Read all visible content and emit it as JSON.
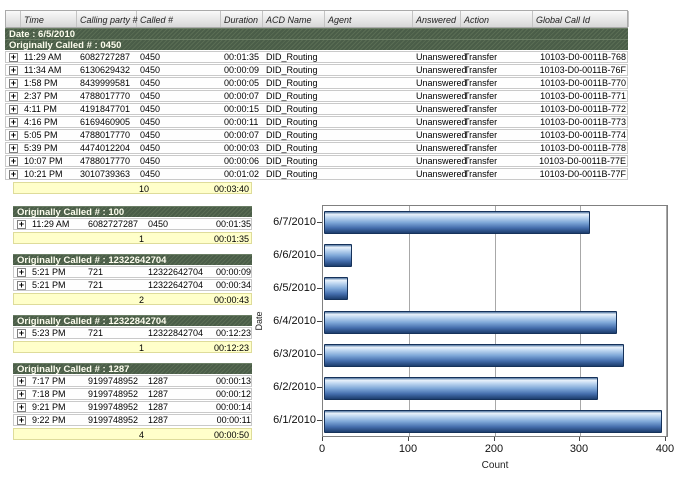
{
  "icons": {
    "expand": "+"
  },
  "colors": {
    "group_band_green": "#4d614c",
    "summary_yellow": "#ffffca",
    "bar_blue": "#5b8cc8",
    "header_gray": "#e3e3e3",
    "table_border": "#c9c9c9"
  },
  "table": {
    "headers": [
      "",
      "Time",
      "Calling party #",
      "Called #",
      "Duration",
      "ACD Name",
      "Agent",
      "Answered",
      "Action",
      "Global Call Id"
    ],
    "date_label": "Date : 6/5/2010",
    "groups": [
      {
        "label": "Originally Called # : 0450",
        "wide": true,
        "rows": [
          {
            "time": "11:29 AM",
            "calling": "6082727287",
            "called": "0450",
            "duration": "00:01:35",
            "acd": "DID_Routing",
            "agent": "",
            "answered": "Unanswered",
            "action": "Transfer",
            "global_id": "10103-D0-0011B-768"
          },
          {
            "time": "11:34 AM",
            "calling": "6130629432",
            "called": "0450",
            "duration": "00:00:09",
            "acd": "DID_Routing",
            "agent": "",
            "answered": "Unanswered",
            "action": "Transfer",
            "global_id": "10103-D0-0011B-76F"
          },
          {
            "time": "1:58 PM",
            "calling": "8439999581",
            "called": "0450",
            "duration": "00:00:05",
            "acd": "DID_Routing",
            "agent": "",
            "answered": "Unanswered",
            "action": "Transfer",
            "global_id": "10103-D0-0011B-770"
          },
          {
            "time": "2:37 PM",
            "calling": "4788017770",
            "called": "0450",
            "duration": "00:00:07",
            "acd": "DID_Routing",
            "agent": "",
            "answered": "Unanswered",
            "action": "Transfer",
            "global_id": "10103-D0-0011B-771"
          },
          {
            "time": "4:11 PM",
            "calling": "4191847701",
            "called": "0450",
            "duration": "00:00:15",
            "acd": "DID_Routing",
            "agent": "",
            "answered": "Unanswered",
            "action": "Transfer",
            "global_id": "10103-D0-0011B-772"
          },
          {
            "time": "4:16 PM",
            "calling": "6169460905",
            "called": "0450",
            "duration": "00:00:11",
            "acd": "DID_Routing",
            "agent": "",
            "answered": "Unanswered",
            "action": "Transfer",
            "global_id": "10103-D0-0011B-773"
          },
          {
            "time": "5:05 PM",
            "calling": "4788017770",
            "called": "0450",
            "duration": "00:00:07",
            "acd": "DID_Routing",
            "agent": "",
            "answered": "Unanswered",
            "action": "Transfer",
            "global_id": "10103-D0-0011B-774"
          },
          {
            "time": "5:39 PM",
            "calling": "4474012204",
            "called": "0450",
            "duration": "00:00:03",
            "acd": "DID_Routing",
            "agent": "",
            "answered": "Unanswered",
            "action": "Transfer",
            "global_id": "10103-D0-0011B-778"
          },
          {
            "time": "10:07 PM",
            "calling": "4788017770",
            "called": "0450",
            "duration": "00:00:06",
            "acd": "DID_Routing",
            "agent": "",
            "answered": "Unanswered",
            "action": "Transfer",
            "global_id": "10103-D0-0011B-77E"
          },
          {
            "time": "10:21 PM",
            "calling": "3010739363",
            "called": "0450",
            "duration": "00:01:02",
            "acd": "DID_Routing",
            "agent": "",
            "answered": "Unanswered",
            "action": "Transfer",
            "global_id": "10103-D0-0011B-77F"
          }
        ],
        "summary": {
          "count": "10",
          "total_duration": "00:03:40"
        }
      },
      {
        "label": "Originally Called # : 100",
        "wide": false,
        "rows": [
          {
            "time": "11:29 AM",
            "calling": "6082727287",
            "called": "0450",
            "duration": "00:01:35"
          }
        ],
        "summary": {
          "count": "1",
          "total_duration": "00:01:35"
        }
      },
      {
        "label": "Originally Called # : 12322642704",
        "wide": false,
        "rows": [
          {
            "time": "5:21 PM",
            "calling": "721",
            "called": "12322642704",
            "duration": "00:00:09"
          },
          {
            "time": "5:21 PM",
            "calling": "721",
            "called": "12322642704",
            "duration": "00:00:34"
          }
        ],
        "summary": {
          "count": "2",
          "total_duration": "00:00:43"
        }
      },
      {
        "label": "Originally Called # : 12322842704",
        "wide": false,
        "rows": [
          {
            "time": "5:23 PM",
            "calling": "721",
            "called": "12322842704",
            "duration": "00:12:23"
          }
        ],
        "summary": {
          "count": "1",
          "total_duration": "00:12:23"
        }
      },
      {
        "label": "Originally Called # : 1287",
        "wide": false,
        "rows": [
          {
            "time": "7:17 PM",
            "calling": "9199748952",
            "called": "1287",
            "duration": "00:00:13"
          },
          {
            "time": "7:18 PM",
            "calling": "9199748952",
            "called": "1287",
            "duration": "00:00:12"
          },
          {
            "time": "9:21 PM",
            "calling": "9199748952",
            "called": "1287",
            "duration": "00:00:14"
          },
          {
            "time": "9:22 PM",
            "calling": "9199748952",
            "called": "1287",
            "duration": "00:00:11"
          }
        ],
        "summary": {
          "count": "4",
          "total_duration": "00:00:50"
        }
      }
    ]
  },
  "chart_data": {
    "type": "bar",
    "orientation": "horizontal",
    "categories": [
      "6/7/2010",
      "6/6/2010",
      "6/5/2010",
      "6/4/2010",
      "6/3/2010",
      "6/2/2010",
      "6/1/2010"
    ],
    "values": [
      310,
      33,
      28,
      342,
      350,
      320,
      394
    ],
    "title": "",
    "xlabel": "Count",
    "ylabel": "Date",
    "xlim": [
      0,
      400
    ],
    "xticks": [
      0,
      100,
      200,
      300,
      400
    ],
    "grid": true,
    "legend": false
  }
}
